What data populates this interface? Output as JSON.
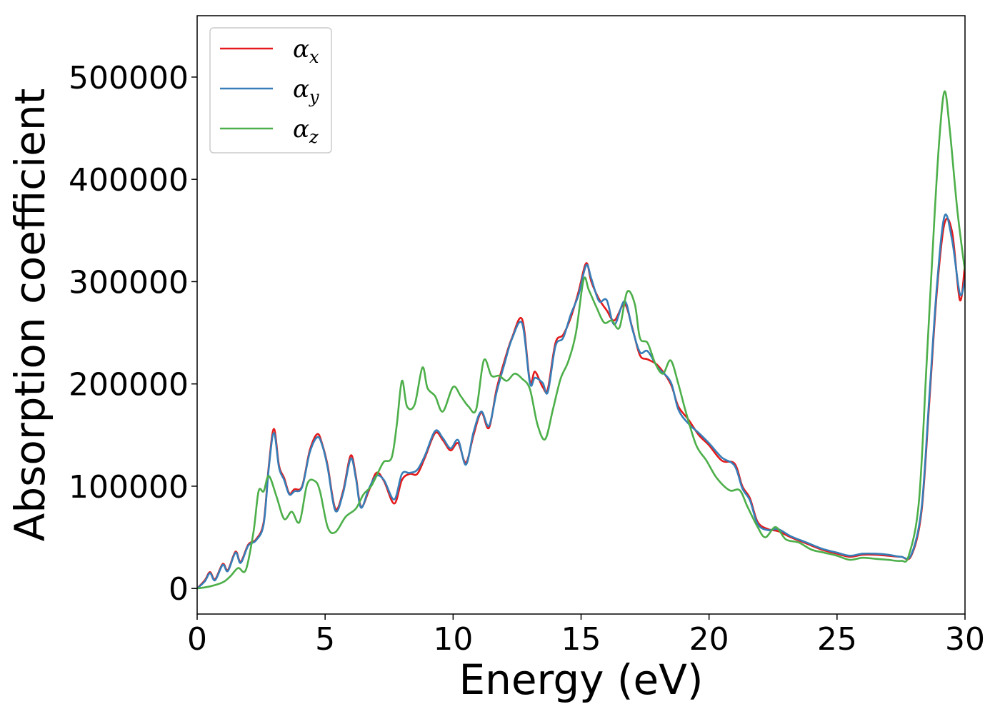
{
  "chart_data": {
    "type": "line",
    "title": "",
    "xlabel": "Energy (eV)",
    "ylabel": "Absorption coefficient",
    "xlim": [
      0,
      30
    ],
    "ylim": [
      -25000,
      560000
    ],
    "xticks": [
      0,
      5,
      10,
      15,
      20,
      25,
      30
    ],
    "xtick_labels": [
      "0",
      "5",
      "10",
      "15",
      "20",
      "25",
      "30"
    ],
    "yticks": [
      0,
      100000,
      200000,
      300000,
      400000,
      500000
    ],
    "ytick_labels": [
      "0",
      "100000",
      "200000",
      "300000",
      "400000",
      "500000"
    ],
    "grid": false,
    "legend_position": "top-left",
    "series": [
      {
        "name": "α_x",
        "legend_base": "α",
        "legend_sub": "x",
        "color": "#e41a1c",
        "points": [
          [
            0,
            0
          ],
          [
            0.3,
            8000
          ],
          [
            0.5,
            16000
          ],
          [
            0.7,
            9000
          ],
          [
            1.0,
            24000
          ],
          [
            1.2,
            18000
          ],
          [
            1.5,
            36000
          ],
          [
            1.7,
            26000
          ],
          [
            2.0,
            43000
          ],
          [
            2.3,
            48000
          ],
          [
            2.6,
            65000
          ],
          [
            2.8,
            120000
          ],
          [
            3.0,
            156000
          ],
          [
            3.2,
            120000
          ],
          [
            3.4,
            108000
          ],
          [
            3.6,
            93000
          ],
          [
            3.8,
            97000
          ],
          [
            4.1,
            100000
          ],
          [
            4.4,
            135000
          ],
          [
            4.7,
            151000
          ],
          [
            4.9,
            140000
          ],
          [
            5.1,
            120000
          ],
          [
            5.4,
            78000
          ],
          [
            5.7,
            95000
          ],
          [
            6.0,
            130000
          ],
          [
            6.2,
            110000
          ],
          [
            6.4,
            80000
          ],
          [
            6.7,
            95000
          ],
          [
            7.0,
            113000
          ],
          [
            7.3,
            105000
          ],
          [
            7.7,
            83000
          ],
          [
            8.0,
            106000
          ],
          [
            8.3,
            112000
          ],
          [
            8.6,
            112000
          ],
          [
            8.9,
            128000
          ],
          [
            9.3,
            152000
          ],
          [
            9.6,
            145000
          ],
          [
            9.9,
            135000
          ],
          [
            10.2,
            142000
          ],
          [
            10.5,
            123000
          ],
          [
            10.8,
            150000
          ],
          [
            11.1,
            172000
          ],
          [
            11.4,
            157000
          ],
          [
            11.7,
            195000
          ],
          [
            12.0,
            222000
          ],
          [
            12.3,
            245000
          ],
          [
            12.7,
            263000
          ],
          [
            13.0,
            203000
          ],
          [
            13.2,
            212000
          ],
          [
            13.5,
            197000
          ],
          [
            13.7,
            195000
          ],
          [
            14.0,
            240000
          ],
          [
            14.3,
            248000
          ],
          [
            14.6,
            265000
          ],
          [
            14.9,
            290000
          ],
          [
            15.2,
            318000
          ],
          [
            15.4,
            300000
          ],
          [
            15.7,
            283000
          ],
          [
            16.0,
            272000
          ],
          [
            16.3,
            262000
          ],
          [
            16.7,
            278000
          ],
          [
            17.0,
            255000
          ],
          [
            17.3,
            228000
          ],
          [
            17.6,
            224000
          ],
          [
            18.0,
            218000
          ],
          [
            18.5,
            200000
          ],
          [
            18.8,
            178000
          ],
          [
            19.2,
            165000
          ],
          [
            19.6,
            150000
          ],
          [
            20.0,
            140000
          ],
          [
            20.5,
            125000
          ],
          [
            21.0,
            122000
          ],
          [
            21.3,
            100000
          ],
          [
            21.6,
            88000
          ],
          [
            21.9,
            65000
          ],
          [
            22.3,
            58000
          ],
          [
            22.7,
            56000
          ],
          [
            23.2,
            50000
          ],
          [
            23.8,
            44000
          ],
          [
            24.4,
            38000
          ],
          [
            25.0,
            34000
          ],
          [
            25.5,
            31000
          ],
          [
            26.0,
            33000
          ],
          [
            26.5,
            33000
          ],
          [
            27.0,
            32000
          ],
          [
            27.5,
            31000
          ],
          [
            27.9,
            32000
          ],
          [
            28.3,
            75000
          ],
          [
            28.6,
            180000
          ],
          [
            28.9,
            290000
          ],
          [
            29.2,
            357000
          ],
          [
            29.5,
            348000
          ],
          [
            29.8,
            282000
          ],
          [
            30.0,
            318000
          ]
        ]
      },
      {
        "name": "α_y",
        "legend_base": "α",
        "legend_sub": "y",
        "color": "#377eb8",
        "points": [
          [
            0,
            0
          ],
          [
            0.3,
            7000
          ],
          [
            0.5,
            15000
          ],
          [
            0.7,
            8000
          ],
          [
            1.0,
            23000
          ],
          [
            1.2,
            17000
          ],
          [
            1.5,
            35000
          ],
          [
            1.7,
            25000
          ],
          [
            2.0,
            42000
          ],
          [
            2.3,
            47000
          ],
          [
            2.6,
            63000
          ],
          [
            2.8,
            118000
          ],
          [
            3.0,
            152000
          ],
          [
            3.2,
            118000
          ],
          [
            3.4,
            106000
          ],
          [
            3.6,
            92000
          ],
          [
            3.8,
            95000
          ],
          [
            4.1,
            99000
          ],
          [
            4.4,
            133000
          ],
          [
            4.7,
            148000
          ],
          [
            4.9,
            139000
          ],
          [
            5.1,
            118000
          ],
          [
            5.4,
            76000
          ],
          [
            5.7,
            93000
          ],
          [
            6.0,
            127000
          ],
          [
            6.2,
            108000
          ],
          [
            6.4,
            79000
          ],
          [
            6.7,
            97000
          ],
          [
            7.0,
            110000
          ],
          [
            7.3,
            106000
          ],
          [
            7.7,
            87000
          ],
          [
            8.0,
            112000
          ],
          [
            8.3,
            113000
          ],
          [
            8.6,
            116000
          ],
          [
            8.9,
            130000
          ],
          [
            9.3,
            154000
          ],
          [
            9.6,
            147000
          ],
          [
            9.9,
            137000
          ],
          [
            10.2,
            145000
          ],
          [
            10.5,
            121000
          ],
          [
            10.8,
            153000
          ],
          [
            11.1,
            173000
          ],
          [
            11.4,
            159000
          ],
          [
            11.7,
            192000
          ],
          [
            12.0,
            219000
          ],
          [
            12.3,
            244000
          ],
          [
            12.7,
            259000
          ],
          [
            13.0,
            201000
          ],
          [
            13.2,
            206000
          ],
          [
            13.5,
            201000
          ],
          [
            13.7,
            192000
          ],
          [
            14.0,
            237000
          ],
          [
            14.3,
            245000
          ],
          [
            14.6,
            268000
          ],
          [
            14.9,
            287000
          ],
          [
            15.2,
            316000
          ],
          [
            15.4,
            303000
          ],
          [
            15.7,
            281000
          ],
          [
            16.0,
            282000
          ],
          [
            16.3,
            258000
          ],
          [
            16.7,
            281000
          ],
          [
            17.0,
            254000
          ],
          [
            17.3,
            231000
          ],
          [
            17.6,
            232000
          ],
          [
            18.0,
            216000
          ],
          [
            18.5,
            202000
          ],
          [
            18.8,
            175000
          ],
          [
            19.2,
            161000
          ],
          [
            19.6,
            152000
          ],
          [
            20.0,
            142000
          ],
          [
            20.5,
            128000
          ],
          [
            21.0,
            120000
          ],
          [
            21.3,
            98000
          ],
          [
            21.6,
            86000
          ],
          [
            21.9,
            63000
          ],
          [
            22.3,
            57000
          ],
          [
            22.7,
            58000
          ],
          [
            23.2,
            51000
          ],
          [
            23.8,
            45000
          ],
          [
            24.4,
            39000
          ],
          [
            25.0,
            35000
          ],
          [
            25.5,
            32000
          ],
          [
            26.0,
            34000
          ],
          [
            26.5,
            34000
          ],
          [
            27.0,
            33000
          ],
          [
            27.5,
            31000
          ],
          [
            27.9,
            33000
          ],
          [
            28.3,
            78000
          ],
          [
            28.6,
            185000
          ],
          [
            28.9,
            295000
          ],
          [
            29.2,
            364000
          ],
          [
            29.5,
            340000
          ],
          [
            29.8,
            288000
          ],
          [
            30.0,
            302000
          ]
        ]
      },
      {
        "name": "α_z",
        "legend_base": "α",
        "legend_sub": "z",
        "color": "#4daf4a",
        "points": [
          [
            0,
            0
          ],
          [
            0.5,
            2000
          ],
          [
            1.0,
            6000
          ],
          [
            1.3,
            12000
          ],
          [
            1.6,
            20000
          ],
          [
            1.9,
            18000
          ],
          [
            2.2,
            55000
          ],
          [
            2.4,
            95000
          ],
          [
            2.6,
            95000
          ],
          [
            2.8,
            110000
          ],
          [
            3.1,
            90000
          ],
          [
            3.4,
            68000
          ],
          [
            3.7,
            75000
          ],
          [
            4.0,
            65000
          ],
          [
            4.3,
            102000
          ],
          [
            4.6,
            105000
          ],
          [
            4.8,
            95000
          ],
          [
            5.1,
            60000
          ],
          [
            5.4,
            55000
          ],
          [
            5.8,
            70000
          ],
          [
            6.2,
            78000
          ],
          [
            6.5,
            92000
          ],
          [
            6.8,
            100000
          ],
          [
            7.1,
            115000
          ],
          [
            7.3,
            124000
          ],
          [
            7.6,
            128000
          ],
          [
            7.8,
            160000
          ],
          [
            8.0,
            203000
          ],
          [
            8.2,
            178000
          ],
          [
            8.5,
            180000
          ],
          [
            8.8,
            216000
          ],
          [
            9.0,
            196000
          ],
          [
            9.3,
            188000
          ],
          [
            9.6,
            173000
          ],
          [
            10.0,
            197000
          ],
          [
            10.3,
            188000
          ],
          [
            10.6,
            178000
          ],
          [
            10.9,
            175000
          ],
          [
            11.2,
            223000
          ],
          [
            11.5,
            208000
          ],
          [
            11.8,
            208000
          ],
          [
            12.1,
            203000
          ],
          [
            12.4,
            210000
          ],
          [
            12.7,
            205000
          ],
          [
            13.0,
            195000
          ],
          [
            13.3,
            160000
          ],
          [
            13.6,
            146000
          ],
          [
            13.9,
            175000
          ],
          [
            14.2,
            205000
          ],
          [
            14.5,
            222000
          ],
          [
            14.8,
            250000
          ],
          [
            15.1,
            302000
          ],
          [
            15.3,
            292000
          ],
          [
            15.6,
            275000
          ],
          [
            15.9,
            260000
          ],
          [
            16.2,
            262000
          ],
          [
            16.5,
            255000
          ],
          [
            16.8,
            290000
          ],
          [
            17.1,
            278000
          ],
          [
            17.3,
            245000
          ],
          [
            17.6,
            240000
          ],
          [
            17.9,
            220000
          ],
          [
            18.2,
            210000
          ],
          [
            18.5,
            223000
          ],
          [
            18.8,
            200000
          ],
          [
            19.1,
            172000
          ],
          [
            19.5,
            140000
          ],
          [
            19.9,
            125000
          ],
          [
            20.3,
            108000
          ],
          [
            20.8,
            96000
          ],
          [
            21.2,
            96000
          ],
          [
            21.5,
            80000
          ],
          [
            21.9,
            60000
          ],
          [
            22.2,
            50000
          ],
          [
            22.6,
            60000
          ],
          [
            23.0,
            48000
          ],
          [
            23.5,
            45000
          ],
          [
            24.0,
            38000
          ],
          [
            24.5,
            35000
          ],
          [
            25.0,
            32000
          ],
          [
            25.5,
            28000
          ],
          [
            26.0,
            30000
          ],
          [
            26.5,
            29000
          ],
          [
            27.0,
            28000
          ],
          [
            27.5,
            27000
          ],
          [
            27.8,
            32000
          ],
          [
            28.2,
            85000
          ],
          [
            28.5,
            220000
          ],
          [
            28.8,
            360000
          ],
          [
            29.0,
            440000
          ],
          [
            29.2,
            486000
          ],
          [
            29.4,
            450000
          ],
          [
            29.7,
            370000
          ],
          [
            30.0,
            310000
          ]
        ]
      }
    ]
  }
}
